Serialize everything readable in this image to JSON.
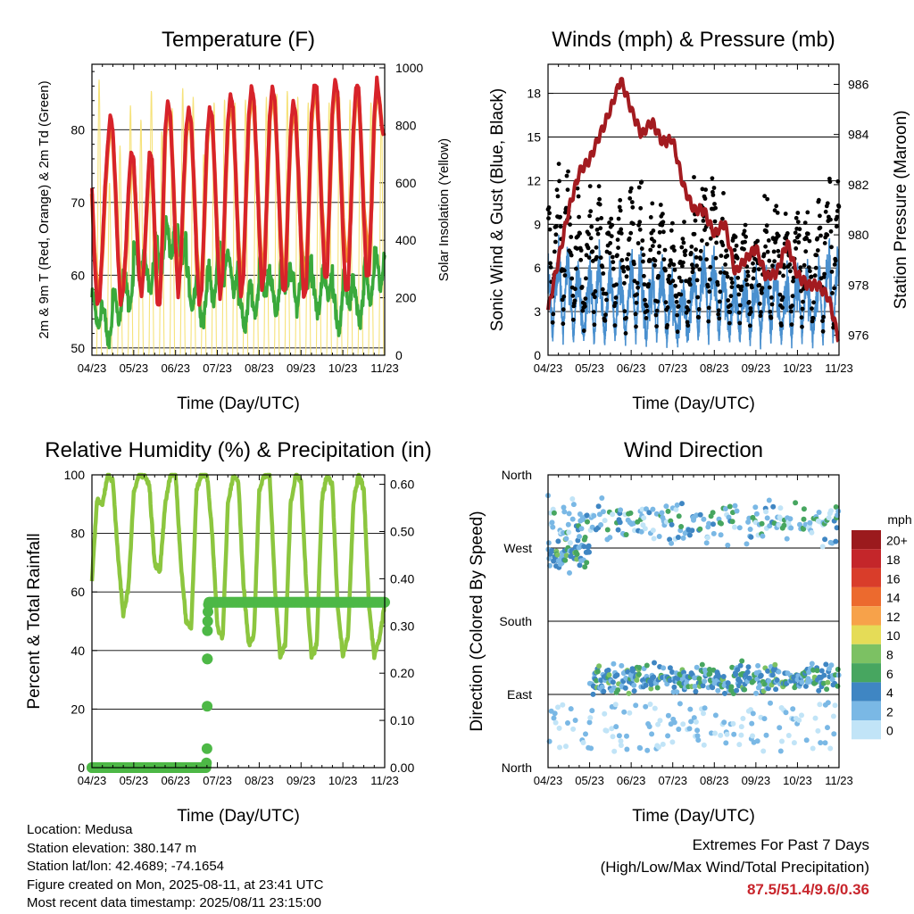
{
  "charts": {
    "x_ticks": [
      "04/23",
      "05/23",
      "06/23",
      "07/23",
      "08/23",
      "09/23",
      "10/23",
      "11/23"
    ],
    "x_title": "Time (Day/UTC)",
    "temperature": {
      "title": "Temperature (F)",
      "ylabel_left": "2m & 9m T (Red, Orange) & 2m Td (Green)",
      "ylabel_right": "Solar Insolation (Yellow)",
      "y_ticks": [
        50,
        60,
        70,
        80
      ],
      "y2_ticks": [
        0,
        200,
        400,
        600,
        800,
        1000
      ]
    },
    "winds": {
      "title": "Winds (mph) & Pressure (mb)",
      "ylabel_left": "Sonic Wind & Gust (Blue, Black)",
      "ylabel_right": "Station Pressure (Maroon)",
      "y_ticks": [
        0,
        3,
        6,
        9,
        12,
        15,
        18
      ],
      "y2_ticks": [
        976,
        978,
        980,
        982,
        984,
        986
      ]
    },
    "humidity": {
      "title": "Relative Humidity (%) & Precipitation (in)",
      "ylabel_left": "Percent & Total Rainfall",
      "y_ticks": [
        0,
        20,
        40,
        60,
        80,
        100
      ],
      "y2_ticks": [
        "0.00",
        "0.10",
        "0.20",
        "0.30",
        "0.40",
        "0.50",
        "0.60"
      ]
    },
    "direction": {
      "title": "Wind Direction",
      "ylabel_left": "Direction (Colored By Speed)",
      "y_ticks": [
        "North",
        "West",
        "South",
        "East",
        "North"
      ],
      "legend_title": "mph",
      "legend_labels": [
        "20+",
        "18",
        "16",
        "14",
        "12",
        "10",
        "8",
        "6",
        "4",
        "2",
        "0"
      ],
      "legend_colors": [
        "#9b1a1d",
        "#c4262a",
        "#d93d2a",
        "#ec6a2e",
        "#f7a24a",
        "#e5dc57",
        "#7cc163",
        "#47a660",
        "#3f86c3",
        "#7ab8e5",
        "#c1e4f7"
      ]
    }
  },
  "chart_data": [
    {
      "type": "line",
      "title": "Temperature (F)",
      "xlabel": "Time (Day/UTC)",
      "ylabel": "2m & 9m T (Red, Orange) & 2m Td (Green)",
      "ylabel_right": "Solar Insolation (Yellow)",
      "ylim": [
        49,
        89
      ],
      "y2lim": [
        0,
        1000
      ],
      "x_days": [
        0,
        0.25,
        0.5,
        0.75,
        1,
        1.25,
        1.5,
        1.75,
        2,
        2.25,
        2.5,
        2.75,
        3,
        3.25,
        3.5,
        3.75,
        4,
        4.25,
        4.5,
        4.75,
        5,
        5.25,
        5.5,
        5.75,
        6,
        6.25,
        6.5,
        6.75,
        7,
        7.25,
        7.5,
        7.75,
        8,
        8.25,
        8.5,
        8.75,
        9,
        9.25,
        9.5,
        9.75,
        10,
        10.25,
        10.5,
        10.75,
        11,
        11.25,
        11.5,
        11.75,
        12,
        12.25,
        12.5,
        12.75,
        13,
        13.25,
        13.5,
        13.75,
        14,
        14.25,
        14.5,
        14.75,
        15,
        15.25,
        15.5,
        15.75,
        16,
        16.25,
        16.5,
        16.75,
        17,
        17.25,
        17.5,
        17.75,
        18,
        18.25,
        18.5,
        18.75,
        19,
        19.25,
        19.5,
        19.75,
        20,
        20.25,
        20.5,
        20.75,
        21,
        21.25,
        21.5,
        21.75,
        22,
        22.25,
        22.5,
        22.75,
        23,
        23.25,
        23.5,
        23.75,
        24,
        24.25,
        24.5,
        24.75,
        25,
        25.25,
        25.5,
        25.75,
        26,
        26.25,
        26.5,
        26.75,
        27,
        27.25,
        27.5,
        27.75,
        28
      ],
      "series": [
        {
          "name": "2m T",
          "color": "#d7232a",
          "values": [
            72,
            62,
            56,
            57,
            64,
            72,
            78,
            82,
            80,
            72,
            62,
            56,
            58,
            64,
            72,
            77,
            76,
            68,
            60,
            57,
            62,
            70,
            77,
            76,
            66,
            56,
            56,
            66,
            80,
            84,
            82,
            74,
            64,
            57,
            62,
            72,
            80,
            83,
            81,
            73,
            63,
            56,
            58,
            68,
            79,
            83,
            82,
            74,
            64,
            57,
            60,
            72,
            81,
            85,
            83,
            74,
            64,
            57,
            60,
            72,
            82,
            86,
            84,
            76,
            66,
            58,
            60,
            72,
            82,
            86,
            84,
            76,
            66,
            58,
            58,
            70,
            80,
            84,
            82,
            74,
            64,
            57,
            58,
            70,
            82,
            86,
            86,
            78,
            68,
            60,
            60,
            72,
            83,
            87,
            85,
            76,
            66,
            58,
            58,
            68,
            80,
            86,
            86,
            78,
            68,
            60,
            60,
            70,
            82,
            87,
            84,
            80,
            79
          ]
        },
        {
          "name": "9m T",
          "color": "#f28a2e",
          "values": [
            71,
            63,
            58,
            58,
            63,
            71,
            77,
            81,
            79,
            72,
            63,
            57,
            58,
            63,
            71,
            76,
            75,
            68,
            61,
            58,
            62,
            69,
            76,
            75,
            66,
            57,
            57,
            65,
            79,
            83,
            82,
            74,
            65,
            58,
            62,
            71,
            79,
            82,
            80,
            73,
            64,
            58,
            59,
            67,
            78,
            82,
            81,
            74,
            65,
            59,
            61,
            71,
            80,
            84,
            82,
            74,
            65,
            59,
            61,
            71,
            81,
            85,
            83,
            76,
            67,
            60,
            62,
            71,
            81,
            85,
            83,
            76,
            67,
            60,
            60,
            70,
            79,
            83,
            81,
            74,
            65,
            60,
            60,
            70,
            81,
            85,
            85,
            78,
            69,
            63,
            62,
            71,
            82,
            86,
            84,
            77,
            68,
            62,
            62,
            68,
            79,
            85,
            85,
            78,
            69,
            65,
            62,
            70,
            81,
            86,
            84,
            80,
            79
          ]
        }
      ]
    },
    {
      "type": "scatter",
      "title": "Winds (mph) & Pressure (mb)",
      "xlabel": "Time (Day/UTC)",
      "ylabel": "Sonic Wind & Gust (Blue, Black)",
      "ylabel_right": "Station Pressure (Maroon)",
      "ylim": [
        0,
        20
      ],
      "y2lim": [
        975.2,
        986.8
      ],
      "series": [
        {
          "name": "Station Pressure",
          "color": "#a31b20",
          "x_days": [
            0,
            1,
            2,
            3,
            4,
            5,
            6,
            7,
            8,
            9,
            10,
            11,
            12,
            13,
            14,
            15,
            16,
            17,
            18,
            19,
            20,
            21,
            22,
            23,
            24,
            25,
            26,
            27,
            28
          ],
          "values": [
            977,
            979,
            981,
            982.5,
            983,
            984,
            985,
            986.2,
            985,
            984,
            984.5,
            983.7,
            983.8,
            982,
            981,
            981,
            980,
            980.5,
            978.5,
            979,
            979.5,
            978.3,
            978.5,
            979.7,
            978.4,
            978,
            978,
            977.5,
            975.8
          ]
        }
      ]
    },
    {
      "type": "line",
      "title": "Relative Humidity (%) & Precipitation (in)",
      "xlabel": "Time (Day/UTC)",
      "ylabel": "Percent & Total Rainfall",
      "ylim": [
        0,
        100
      ],
      "y2lim": [
        0,
        0.62
      ],
      "series": [
        {
          "name": "Relative Humidity",
          "color": "#8cc63f",
          "x_days": [
            0,
            0.5,
            1,
            1.5,
            2,
            2.5,
            3,
            3.5,
            4,
            4.5,
            5,
            5.5,
            6,
            6.5,
            7,
            7.5,
            8,
            8.5,
            9,
            9.5,
            10,
            10.5,
            11,
            11.5,
            12,
            12.5,
            13,
            13.5,
            14,
            14.5,
            15,
            15.5,
            16,
            16.5,
            17,
            17.5,
            18,
            18.5,
            19,
            19.5,
            20,
            20.5,
            21,
            21.5,
            22,
            22.5,
            23,
            23.5,
            24,
            24.5,
            25,
            25.5,
            26,
            26.5,
            27,
            27.5,
            28
          ],
          "values": [
            64,
            92,
            90,
            100,
            98,
            72,
            52,
            62,
            94,
            100,
            100,
            96,
            70,
            67,
            90,
            100,
            100,
            70,
            50,
            48,
            95,
            100,
            100,
            80,
            48,
            44,
            90,
            100,
            98,
            62,
            42,
            45,
            95,
            100,
            100,
            62,
            38,
            42,
            90,
            100,
            98,
            62,
            38,
            42,
            92,
            100,
            96,
            55,
            38,
            45,
            90,
            100,
            95,
            55,
            38,
            44,
            56
          ]
        },
        {
          "name": "Total Precipitation",
          "color": "#4db846",
          "x_days": [
            0,
            5,
            10,
            10.9,
            10.95,
            11,
            11.02,
            11.04,
            11.05,
            11.07,
            11.1,
            11.15,
            11.2,
            15,
            20,
            25,
            28
          ],
          "values": [
            0,
            0,
            0,
            0,
            0.01,
            0.04,
            0.13,
            0.23,
            0.29,
            0.31,
            0.33,
            0.345,
            0.35,
            0.35,
            0.35,
            0.35,
            0.35
          ]
        }
      ]
    },
    {
      "type": "scatter",
      "title": "Wind Direction",
      "xlabel": "Time (Day/UTC)",
      "ylabel": "Direction (Colored By Speed)"
    }
  ],
  "info": {
    "location": "Location: Medusa",
    "elevation": "Station elevation: 380.147 m",
    "latlon": "Station lat/lon: 42.4689; -74.1654",
    "created": "Figure created on Mon, 2025-08-11, at 23:41 UTC",
    "recent": "Most recent data timestamp: 2025/08/11 23:15:00"
  },
  "extremes": {
    "line1": "Extremes For Past 7 Days",
    "line2": "(High/Low/Max Wind/Total Precipitation)",
    "values": "87.5/51.4/9.6/0.36"
  }
}
